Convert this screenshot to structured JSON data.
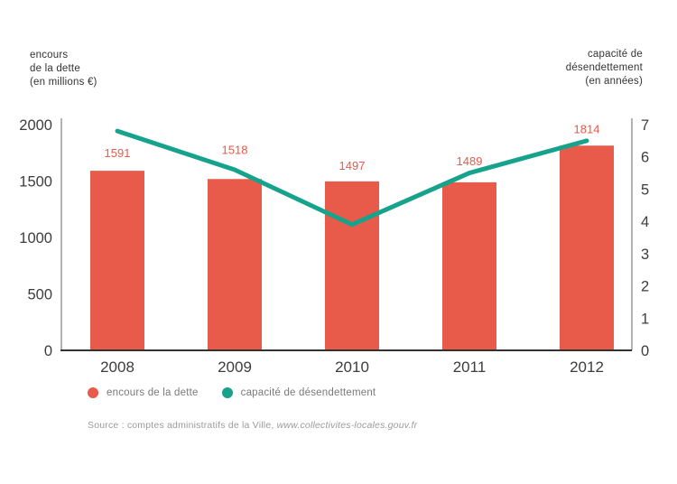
{
  "left_axis_header": {
    "line1": "encours",
    "line2": "de la dette",
    "line3": "(en millions €)"
  },
  "right_axis_header": {
    "line1": "capacité de",
    "line2": "désendettement",
    "line3": "(en années)"
  },
  "legend": {
    "items": [
      {
        "label": "encours de la dette",
        "color": "#E85A49"
      },
      {
        "label": "capacité de désendettement",
        "color": "#17A38B"
      }
    ]
  },
  "source": {
    "prefix": "Source : comptes administratifs de la Ville, ",
    "link": "www.collectivites-locales.gouv.fr"
  },
  "chart_data": {
    "type": "bar",
    "subtype": "bar+line dual axis",
    "categories": [
      "2008",
      "2009",
      "2010",
      "2011",
      "2012"
    ],
    "series": [
      {
        "name": "encours de la dette",
        "type": "bar",
        "axis": "left",
        "color": "#E85A49",
        "values": [
          1591,
          1518,
          1497,
          1489,
          1814
        ]
      },
      {
        "name": "capacité de désendettement",
        "type": "line",
        "axis": "right",
        "color": "#17A38B",
        "values": [
          6.8,
          5.6,
          3.9,
          5.5,
          6.5
        ]
      }
    ],
    "left_axis": {
      "label": "encours de la dette (en millions €)",
      "ticks": [
        2000,
        1500,
        1000,
        500,
        0
      ],
      "range": [
        0,
        2000
      ]
    },
    "right_axis": {
      "label": "capacité de désendettement (en années)",
      "ticks": [
        7,
        6,
        5,
        4,
        3,
        2,
        1,
        0
      ],
      "range": [
        0,
        7
      ]
    },
    "grid": false,
    "legend_position": "bottom",
    "text_color": "#3d3d3d",
    "axis_line_color": "#a0a0a0",
    "baseline_color": "#333333"
  }
}
